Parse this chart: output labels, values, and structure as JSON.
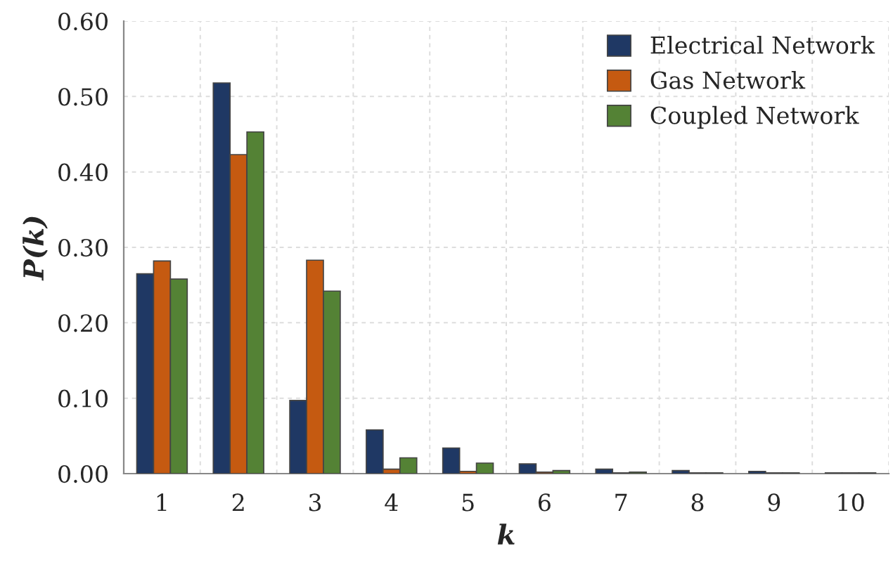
{
  "chart_data": {
    "type": "bar",
    "xlabel": "k",
    "ylabel": "P(k)",
    "categories": [
      "1",
      "2",
      "3",
      "4",
      "5",
      "6",
      "7",
      "8",
      "9",
      "10"
    ],
    "series": [
      {
        "name": "Electrical Network",
        "color": "#1f3864",
        "values": [
          0.265,
          0.518,
          0.097,
          0.058,
          0.034,
          0.013,
          0.006,
          0.004,
          0.003,
          0.001
        ]
      },
      {
        "name": "Gas Network",
        "color": "#c55a11",
        "values": [
          0.282,
          0.423,
          0.283,
          0.006,
          0.003,
          0.002,
          0.001,
          0.001,
          0.001,
          0.001
        ]
      },
      {
        "name": "Coupled Network",
        "color": "#548235",
        "values": [
          0.258,
          0.453,
          0.242,
          0.021,
          0.014,
          0.004,
          0.002,
          0.001,
          0.001,
          0.001
        ]
      }
    ],
    "ylim": [
      0,
      0.6
    ],
    "yticks": [
      {
        "value": 0,
        "label": "0.00"
      },
      {
        "value": 0.1,
        "label": "0.10"
      },
      {
        "value": 0.2,
        "label": "0.20"
      },
      {
        "value": 0.3,
        "label": "0.30"
      },
      {
        "value": 0.4,
        "label": "0.40"
      },
      {
        "value": 0.5,
        "label": "0.50"
      },
      {
        "value": 0.6,
        "label": "0.60"
      }
    ],
    "grid": true,
    "legend": "top right"
  }
}
